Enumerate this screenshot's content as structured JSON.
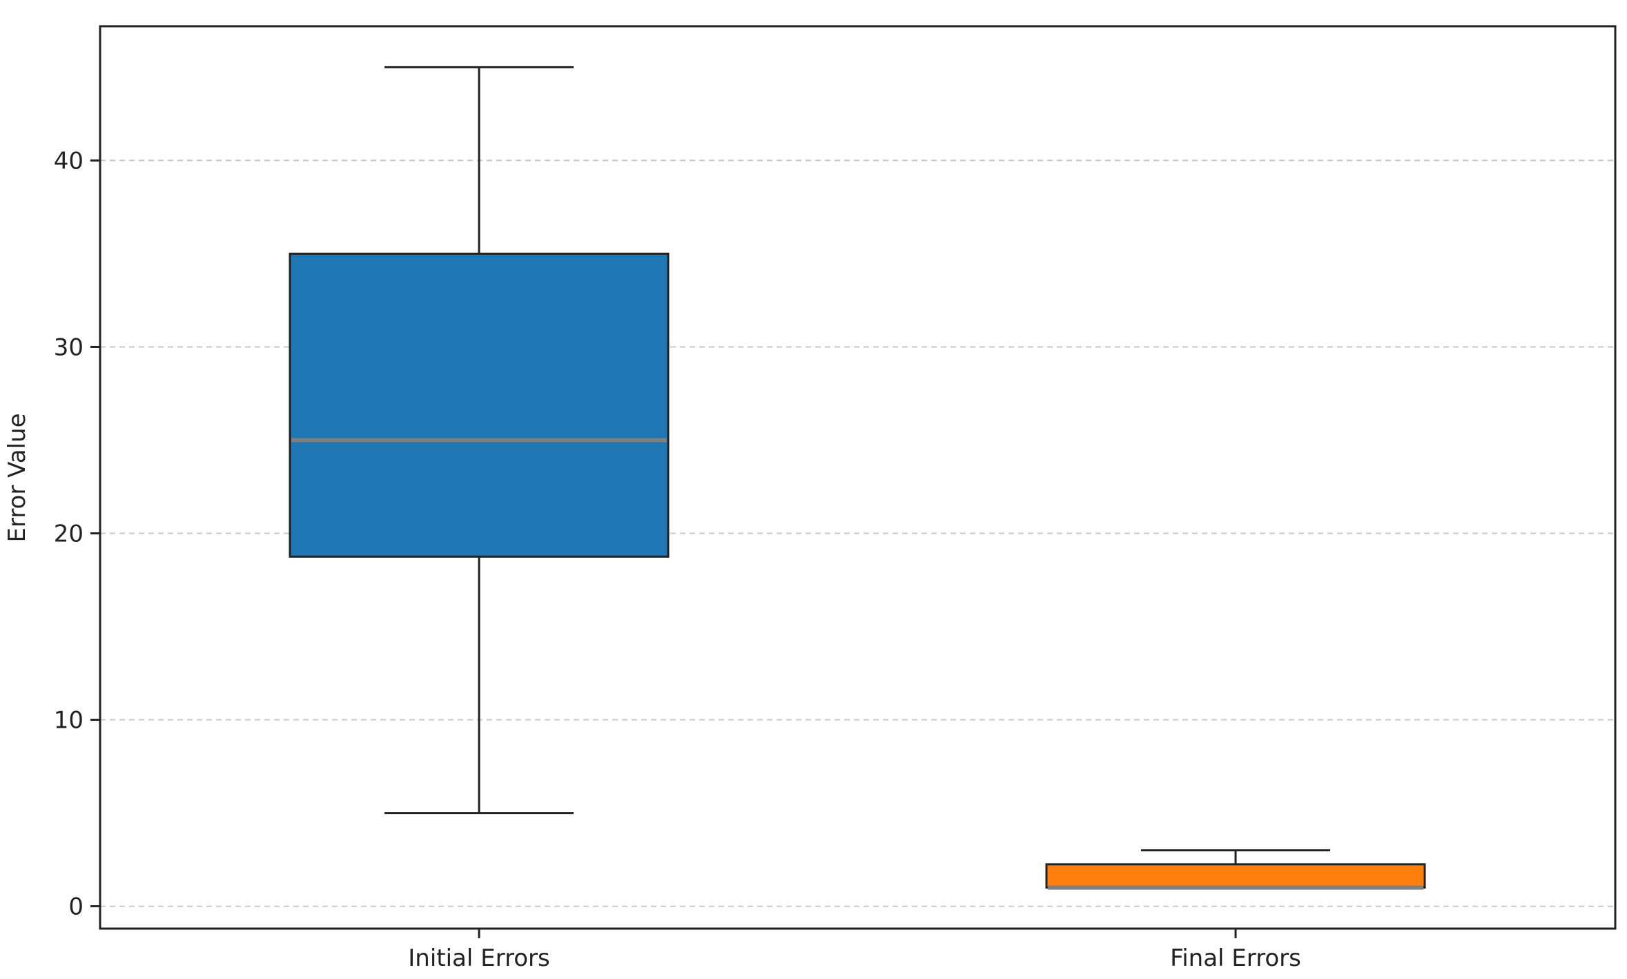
{
  "chart_data": {
    "type": "box",
    "title": "",
    "xlabel": "",
    "ylabel": "Error Value",
    "ylim": [
      -1.2,
      47.2
    ],
    "yticks": [
      0,
      10,
      20,
      30,
      40
    ],
    "grid": {
      "y": true,
      "style": "dashed"
    },
    "categories": [
      "Initial Errors",
      "Final Errors"
    ],
    "boxes": [
      {
        "label": "Initial Errors",
        "whisker_low": 5,
        "q1": 18.75,
        "median": 25,
        "q3": 35,
        "whisker_high": 45,
        "color": "#1f77b4"
      },
      {
        "label": "Final Errors",
        "whisker_low": 1,
        "q1": 1,
        "median": 1,
        "q3": 2.25,
        "whisker_high": 3,
        "color": "#ff7f0e"
      }
    ],
    "median_color": "#7f7f7f"
  }
}
